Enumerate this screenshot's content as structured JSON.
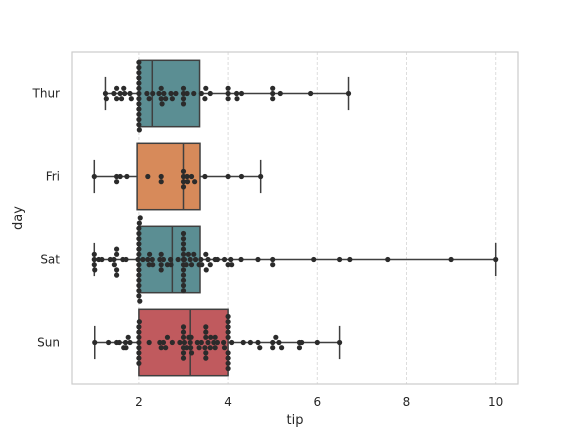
{
  "chart_data": {
    "type": "box",
    "xlabel": "tip",
    "ylabel": "day",
    "xlim": [
      0.5,
      10.5
    ],
    "xticks": [
      2,
      4,
      6,
      8,
      10
    ],
    "grid": "vertical",
    "categories": [
      "Thur",
      "Fri",
      "Sat",
      "Sun"
    ],
    "boxes": [
      {
        "name": "Thur",
        "color": "#5b8e93",
        "whisker_low": 1.25,
        "q1": 2.0,
        "median": 2.3,
        "q3": 3.36,
        "whisker_high": 6.7
      },
      {
        "name": "Fri",
        "color": "#d78a5a",
        "whisker_low": 1.0,
        "q1": 1.96,
        "median": 3.0,
        "q3": 3.37,
        "whisker_high": 4.73
      },
      {
        "name": "Sat",
        "color": "#5b8e93",
        "whisker_low": 1.0,
        "q1": 2.0,
        "median": 2.75,
        "q3": 3.37,
        "whisker_high": 10.0
      },
      {
        "name": "Sun",
        "color": "#c05a5e",
        "whisker_low": 1.01,
        "q1": 2.0,
        "median": 3.15,
        "q3": 4.0,
        "whisker_high": 6.5
      }
    ],
    "points": {
      "Thur": [
        1.25,
        1.27,
        1.44,
        1.5,
        1.5,
        1.58,
        1.61,
        1.66,
        1.68,
        1.8,
        1.83,
        2.0,
        2.0,
        2.0,
        2.0,
        2.0,
        2.0,
        2.0,
        2.0,
        2.0,
        2.0,
        2.0,
        2.0,
        2.0,
        2.01,
        2.18,
        2.23,
        2.31,
        2.45,
        2.5,
        2.5,
        2.52,
        2.56,
        2.6,
        2.72,
        2.75,
        2.83,
        3.0,
        3.0,
        3.0,
        3.0,
        3.08,
        3.23,
        3.4,
        3.48,
        3.5,
        3.6,
        4.0,
        4.0,
        4.0,
        4.19,
        4.2,
        4.3,
        5.0,
        5.0,
        5.0,
        5.17,
        5.85,
        6.7
      ],
      "Fri": [
        1.0,
        1.5,
        1.5,
        1.58,
        1.73,
        2.2,
        2.5,
        2.5,
        3.0,
        3.0,
        3.0,
        3.0,
        3.08,
        3.09,
        3.18,
        3.25,
        3.48,
        4.0,
        4.3,
        4.73
      ],
      "Sat": [
        1.0,
        1.0,
        1.0,
        1.01,
        1.1,
        1.17,
        1.36,
        1.44,
        1.45,
        1.5,
        1.5,
        1.5,
        1.5,
        1.64,
        1.71,
        1.98,
        2.0,
        2.0,
        2.0,
        2.0,
        2.0,
        2.0,
        2.0,
        2.0,
        2.0,
        2.0,
        2.0,
        2.0,
        2.0,
        2.01,
        2.02,
        2.03,
        2.09,
        2.2,
        2.23,
        2.24,
        2.3,
        2.31,
        2.47,
        2.5,
        2.5,
        2.5,
        2.55,
        2.64,
        2.71,
        2.72,
        2.88,
        3.0,
        3.0,
        3.0,
        3.0,
        3.0,
        3.0,
        3.0,
        3.0,
        3.0,
        3.0,
        3.0,
        3.0,
        3.02,
        3.06,
        3.11,
        3.15,
        3.18,
        3.23,
        3.27,
        3.35,
        3.39,
        3.41,
        3.5,
        3.51,
        3.55,
        3.6,
        3.71,
        3.76,
        3.92,
        4.0,
        4.06,
        4.08,
        4.29,
        4.67,
        5.0,
        5.0,
        5.92,
        6.5,
        6.73,
        7.58,
        9.0,
        10.0
      ],
      "Sun": [
        1.01,
        1.32,
        1.5,
        1.56,
        1.66,
        1.7,
        1.71,
        1.76,
        1.8,
        2.0,
        2.0,
        2.0,
        2.0,
        2.0,
        2.0,
        2.0,
        2.0,
        2.01,
        2.23,
        2.47,
        2.5,
        2.55,
        2.6,
        2.64,
        2.75,
        2.92,
        3.0,
        3.0,
        3.0,
        3.0,
        3.0,
        3.0,
        3.02,
        3.07,
        3.12,
        3.15,
        3.16,
        3.17,
        3.18,
        3.31,
        3.35,
        3.4,
        3.48,
        3.5,
        3.5,
        3.5,
        3.5,
        3.5,
        3.55,
        3.6,
        3.61,
        3.68,
        3.71,
        3.71,
        3.76,
        3.9,
        3.92,
        4.0,
        4.0,
        4.0,
        4.0,
        4.0,
        4.0,
        4.0,
        4.0,
        4.0,
        4.08,
        4.34,
        4.5,
        4.67,
        4.71,
        5.0,
        5.0,
        5.07,
        5.14,
        5.2,
        5.6,
        5.6,
        5.65,
        6.0,
        6.5
      ]
    }
  }
}
